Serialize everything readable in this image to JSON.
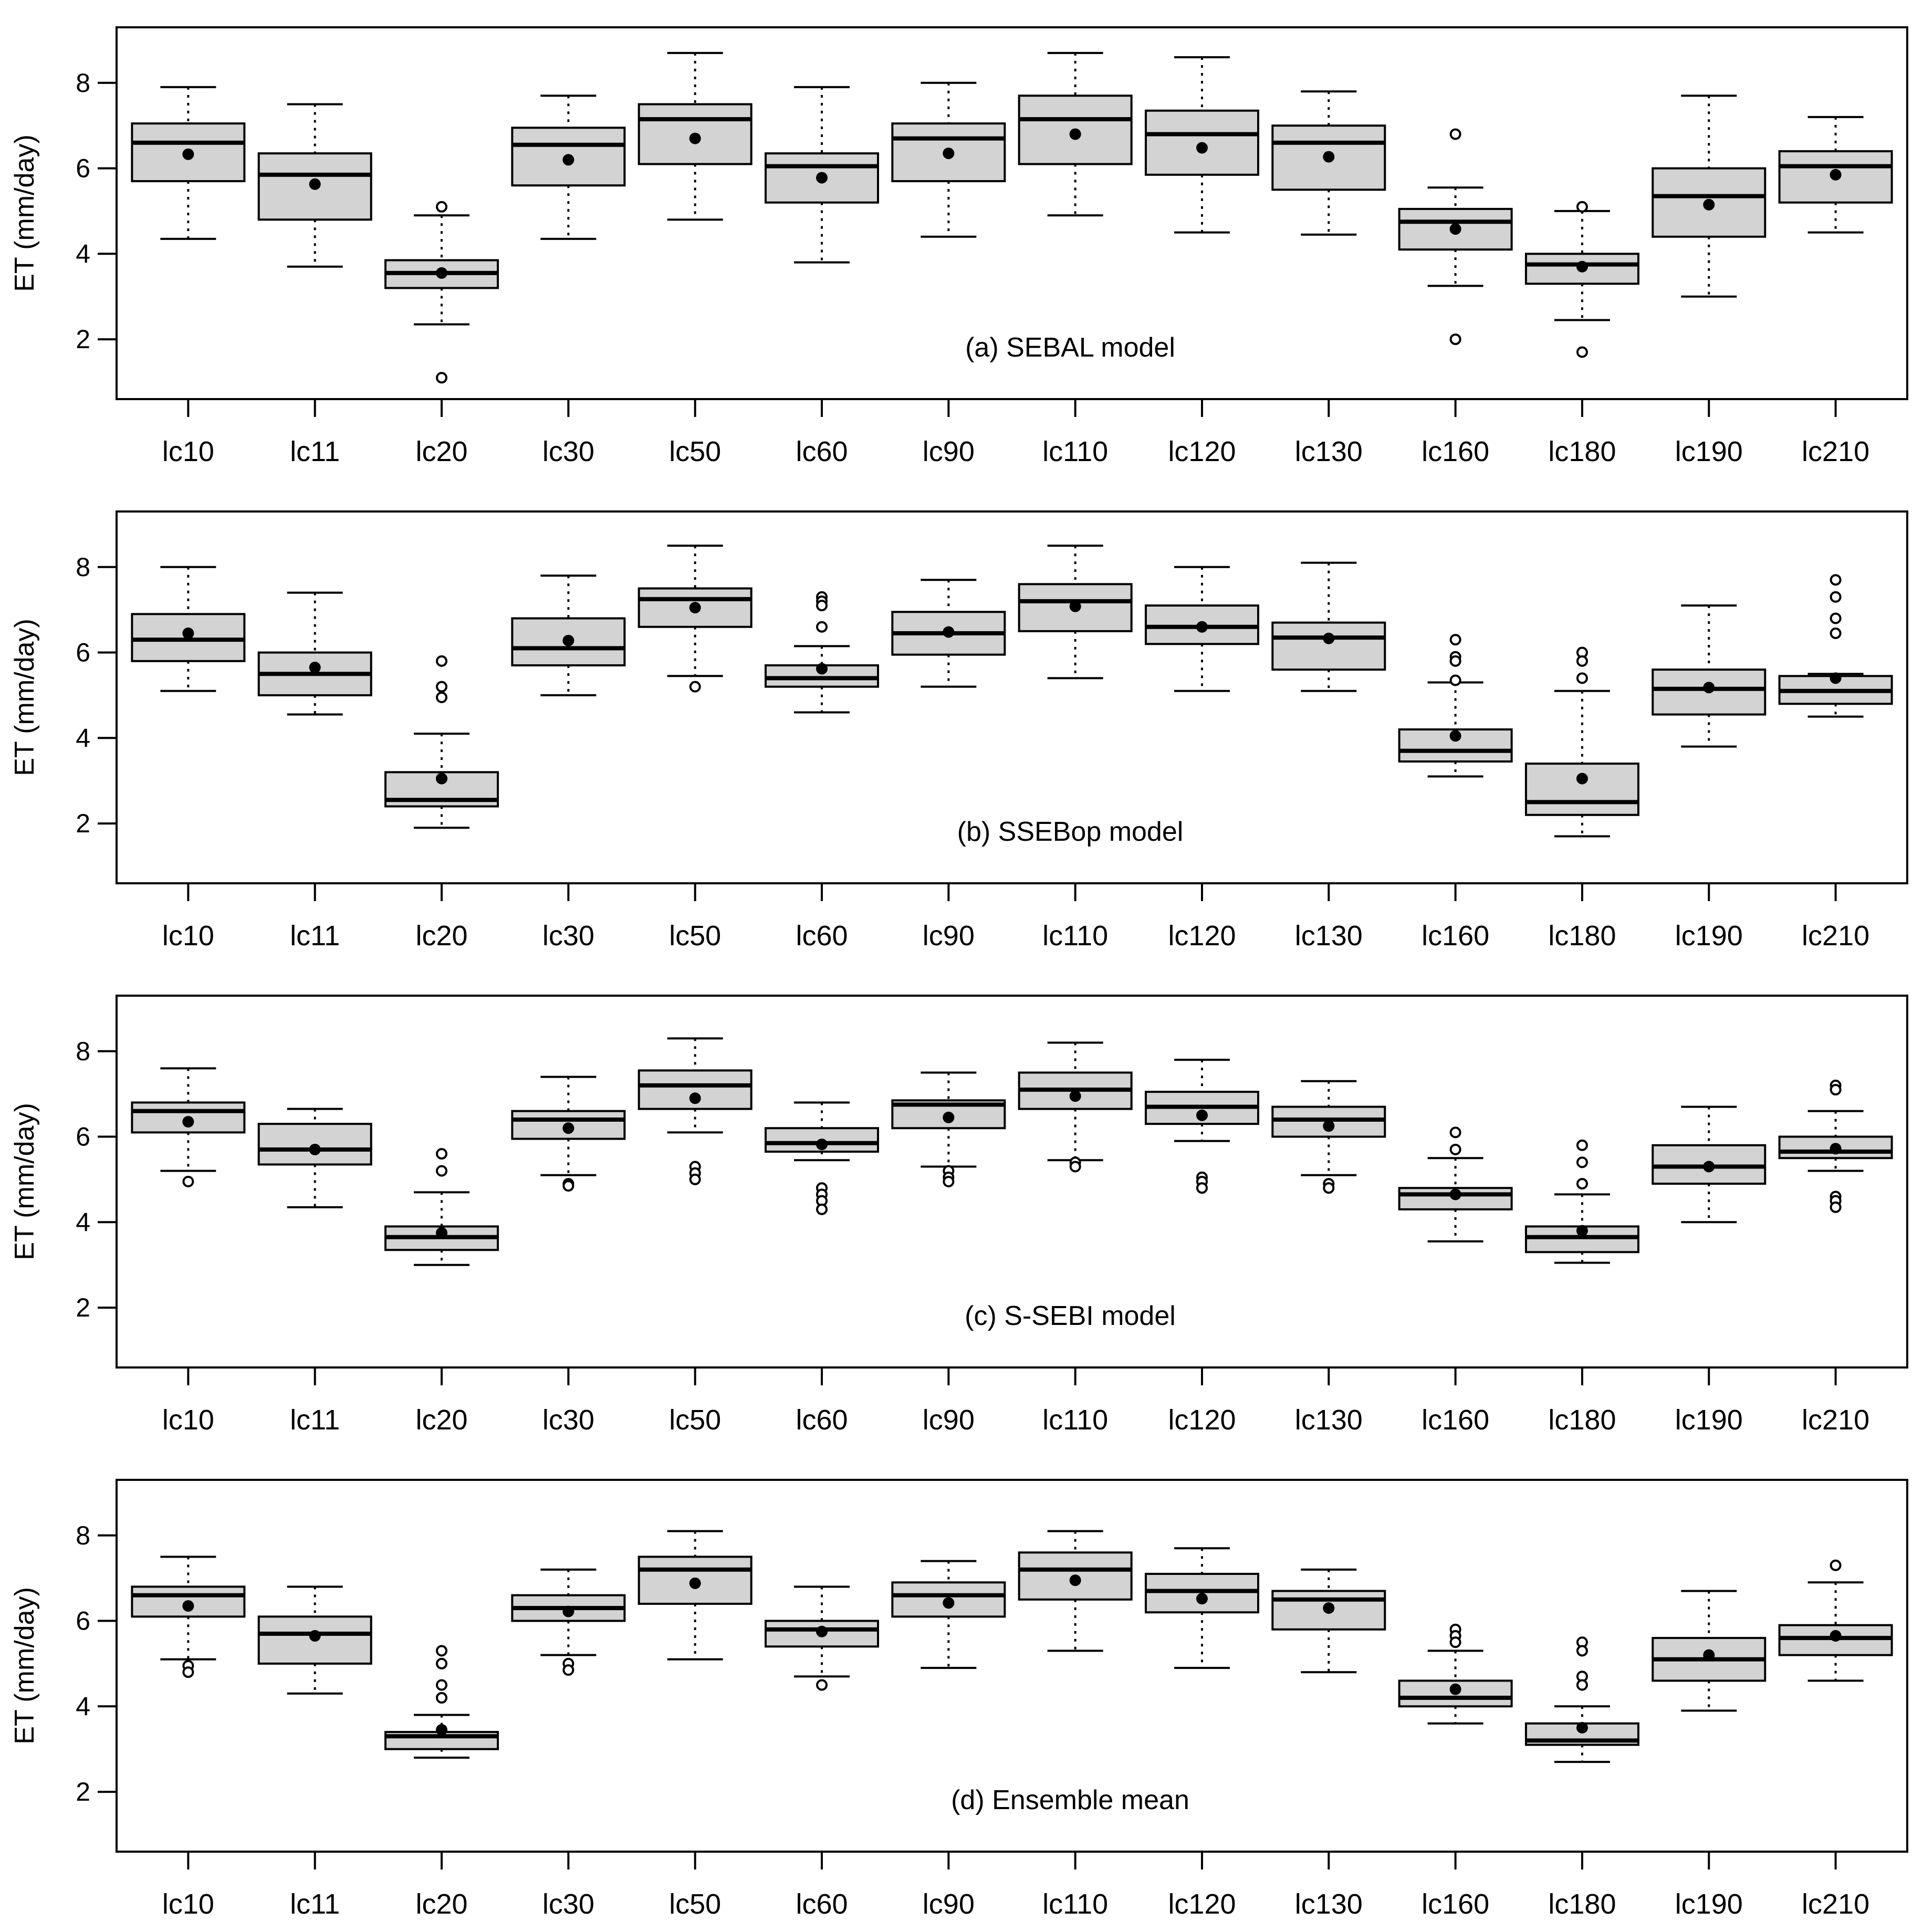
{
  "chart_data": [
    {
      "type": "box",
      "title": "(a) SEBAL model",
      "ylabel": "ET (mm/day)",
      "ylim": [
        0.6,
        9.3
      ],
      "yticks": [
        2,
        4,
        6,
        8
      ],
      "categories": [
        "lc10",
        "lc11",
        "lc20",
        "lc30",
        "lc50",
        "lc60",
        "lc90",
        "lc110",
        "lc120",
        "lc130",
        "lc160",
        "lc180",
        "lc190",
        "lc210"
      ],
      "boxes": [
        {
          "min": 4.35,
          "q1": 5.7,
          "median": 6.6,
          "q3": 7.05,
          "max": 7.9,
          "mean": 6.33,
          "outliers": []
        },
        {
          "min": 3.7,
          "q1": 4.8,
          "median": 5.85,
          "q3": 6.35,
          "max": 7.5,
          "mean": 5.63,
          "outliers": []
        },
        {
          "min": 2.35,
          "q1": 3.2,
          "median": 3.55,
          "q3": 3.85,
          "max": 4.9,
          "mean": 3.55,
          "outliers": [
            5.1,
            1.1
          ]
        },
        {
          "min": 4.35,
          "q1": 5.6,
          "median": 6.55,
          "q3": 6.95,
          "max": 7.7,
          "mean": 6.2,
          "outliers": []
        },
        {
          "min": 4.8,
          "q1": 6.1,
          "median": 7.15,
          "q3": 7.5,
          "max": 8.7,
          "mean": 6.7,
          "outliers": []
        },
        {
          "min": 3.8,
          "q1": 5.2,
          "median": 6.05,
          "q3": 6.35,
          "max": 7.9,
          "mean": 5.78,
          "outliers": []
        },
        {
          "min": 4.4,
          "q1": 5.7,
          "median": 6.7,
          "q3": 7.05,
          "max": 8.0,
          "mean": 6.35,
          "outliers": []
        },
        {
          "min": 4.9,
          "q1": 6.1,
          "median": 7.15,
          "q3": 7.7,
          "max": 8.7,
          "mean": 6.8,
          "outliers": []
        },
        {
          "min": 4.5,
          "q1": 5.85,
          "median": 6.8,
          "q3": 7.35,
          "max": 8.6,
          "mean": 6.48,
          "outliers": []
        },
        {
          "min": 4.45,
          "q1": 5.5,
          "median": 6.6,
          "q3": 7.0,
          "max": 7.8,
          "mean": 6.27,
          "outliers": []
        },
        {
          "min": 3.25,
          "q1": 4.1,
          "median": 4.75,
          "q3": 5.05,
          "max": 5.55,
          "mean": 4.58,
          "outliers": [
            6.8,
            2.0
          ]
        },
        {
          "min": 2.45,
          "q1": 3.3,
          "median": 3.75,
          "q3": 4.0,
          "max": 5.0,
          "mean": 3.7,
          "outliers": [
            5.1,
            1.7
          ]
        },
        {
          "min": 3.0,
          "q1": 4.4,
          "median": 5.35,
          "q3": 6.0,
          "max": 7.7,
          "mean": 5.15,
          "outliers": []
        },
        {
          "min": 4.5,
          "q1": 5.2,
          "median": 6.05,
          "q3": 6.4,
          "max": 7.2,
          "mean": 5.85,
          "outliers": []
        }
      ]
    },
    {
      "type": "box",
      "title": "(b) SSEBop model",
      "ylabel": "ET (mm/day)",
      "ylim": [
        0.6,
        9.3
      ],
      "yticks": [
        2,
        4,
        6,
        8
      ],
      "categories": [
        "lc10",
        "lc11",
        "lc20",
        "lc30",
        "lc50",
        "lc60",
        "lc90",
        "lc110",
        "lc120",
        "lc130",
        "lc160",
        "lc180",
        "lc190",
        "lc210"
      ],
      "boxes": [
        {
          "min": 5.1,
          "q1": 5.8,
          "median": 6.3,
          "q3": 6.9,
          "max": 8.0,
          "mean": 6.45,
          "outliers": []
        },
        {
          "min": 4.55,
          "q1": 5.0,
          "median": 5.5,
          "q3": 6.0,
          "max": 7.4,
          "mean": 5.65,
          "outliers": []
        },
        {
          "min": 1.9,
          "q1": 2.4,
          "median": 2.55,
          "q3": 3.2,
          "max": 4.1,
          "mean": 3.05,
          "outliers": [
            5.8,
            5.2,
            4.95
          ]
        },
        {
          "min": 5.0,
          "q1": 5.7,
          "median": 6.1,
          "q3": 6.8,
          "max": 7.8,
          "mean": 6.28,
          "outliers": []
        },
        {
          "min": 5.45,
          "q1": 6.6,
          "median": 7.25,
          "q3": 7.5,
          "max": 8.5,
          "mean": 7.05,
          "outliers": [
            5.2
          ]
        },
        {
          "min": 4.6,
          "q1": 5.2,
          "median": 5.4,
          "q3": 5.7,
          "max": 6.15,
          "mean": 5.62,
          "outliers": [
            7.3,
            7.2,
            7.1,
            6.6
          ]
        },
        {
          "min": 5.2,
          "q1": 5.95,
          "median": 6.45,
          "q3": 6.95,
          "max": 7.7,
          "mean": 6.48,
          "outliers": []
        },
        {
          "min": 5.4,
          "q1": 6.5,
          "median": 7.2,
          "q3": 7.6,
          "max": 8.5,
          "mean": 7.08,
          "outliers": []
        },
        {
          "min": 5.1,
          "q1": 6.2,
          "median": 6.6,
          "q3": 7.1,
          "max": 8.0,
          "mean": 6.6,
          "outliers": []
        },
        {
          "min": 5.1,
          "q1": 5.6,
          "median": 6.35,
          "q3": 6.7,
          "max": 8.1,
          "mean": 6.33,
          "outliers": []
        },
        {
          "min": 3.1,
          "q1": 3.45,
          "median": 3.7,
          "q3": 4.2,
          "max": 5.3,
          "mean": 4.05,
          "outliers": [
            6.3,
            5.9,
            5.8,
            5.35
          ]
        },
        {
          "min": 1.7,
          "q1": 2.2,
          "median": 2.5,
          "q3": 3.4,
          "max": 5.1,
          "mean": 3.05,
          "outliers": [
            6.0,
            5.8,
            5.4
          ]
        },
        {
          "min": 3.8,
          "q1": 4.55,
          "median": 5.15,
          "q3": 5.6,
          "max": 7.1,
          "mean": 5.18,
          "outliers": []
        },
        {
          "min": 4.5,
          "q1": 4.8,
          "median": 5.1,
          "q3": 5.45,
          "max": 5.5,
          "mean": 5.4,
          "outliers": [
            7.7,
            7.3,
            6.8,
            6.45
          ]
        }
      ]
    },
    {
      "type": "box",
      "title": "(c) S-SEBI model",
      "ylabel": "ET (mm/day)",
      "ylim": [
        0.6,
        9.3
      ],
      "yticks": [
        2,
        4,
        6,
        8
      ],
      "categories": [
        "lc10",
        "lc11",
        "lc20",
        "lc30",
        "lc50",
        "lc60",
        "lc90",
        "lc110",
        "lc120",
        "lc130",
        "lc160",
        "lc180",
        "lc190",
        "lc210"
      ],
      "boxes": [
        {
          "min": 5.2,
          "q1": 6.1,
          "median": 6.6,
          "q3": 6.8,
          "max": 7.6,
          "mean": 6.35,
          "outliers": [
            4.95
          ]
        },
        {
          "min": 4.35,
          "q1": 5.35,
          "median": 5.7,
          "q3": 6.3,
          "max": 6.65,
          "mean": 5.7,
          "outliers": []
        },
        {
          "min": 3.0,
          "q1": 3.35,
          "median": 3.65,
          "q3": 3.9,
          "max": 4.7,
          "mean": 3.75,
          "outliers": [
            5.6,
            5.2
          ]
        },
        {
          "min": 5.1,
          "q1": 5.95,
          "median": 6.4,
          "q3": 6.6,
          "max": 7.4,
          "mean": 6.2,
          "outliers": [
            4.9,
            4.85
          ]
        },
        {
          "min": 6.1,
          "q1": 6.65,
          "median": 7.2,
          "q3": 7.55,
          "max": 8.3,
          "mean": 6.9,
          "outliers": [
            5.3,
            5.15,
            5.0
          ]
        },
        {
          "min": 5.45,
          "q1": 5.65,
          "median": 5.85,
          "q3": 6.2,
          "max": 6.8,
          "mean": 5.82,
          "outliers": [
            4.8,
            4.65,
            4.5,
            4.3
          ]
        },
        {
          "min": 5.3,
          "q1": 6.2,
          "median": 6.75,
          "q3": 6.85,
          "max": 7.5,
          "mean": 6.45,
          "outliers": [
            5.2,
            5.05,
            4.95
          ]
        },
        {
          "min": 5.45,
          "q1": 6.65,
          "median": 7.1,
          "q3": 7.5,
          "max": 8.2,
          "mean": 6.95,
          "outliers": [
            5.4,
            5.3
          ]
        },
        {
          "min": 5.9,
          "q1": 6.3,
          "median": 6.7,
          "q3": 7.05,
          "max": 7.8,
          "mean": 6.5,
          "outliers": [
            5.05,
            4.95,
            4.8
          ]
        },
        {
          "min": 5.1,
          "q1": 6.0,
          "median": 6.4,
          "q3": 6.7,
          "max": 7.3,
          "mean": 6.25,
          "outliers": [
            4.9,
            4.8
          ]
        },
        {
          "min": 3.55,
          "q1": 4.3,
          "median": 4.65,
          "q3": 4.8,
          "max": 5.5,
          "mean": 4.65,
          "outliers": [
            6.1,
            5.7
          ]
        },
        {
          "min": 3.05,
          "q1": 3.3,
          "median": 3.65,
          "q3": 3.9,
          "max": 4.65,
          "mean": 3.8,
          "outliers": [
            5.8,
            5.4,
            4.9
          ]
        },
        {
          "min": 4.0,
          "q1": 4.9,
          "median": 5.3,
          "q3": 5.8,
          "max": 6.7,
          "mean": 5.3,
          "outliers": []
        },
        {
          "min": 5.2,
          "q1": 5.5,
          "median": 5.65,
          "q3": 6.0,
          "max": 6.6,
          "mean": 5.72,
          "outliers": [
            7.2,
            7.1,
            4.6,
            4.5,
            4.35
          ]
        }
      ]
    },
    {
      "type": "box",
      "title": "(d) Ensemble mean",
      "ylabel": "ET (mm/day)",
      "ylim": [
        0.6,
        9.3
      ],
      "yticks": [
        2,
        4,
        6,
        8
      ],
      "categories": [
        "lc10",
        "lc11",
        "lc20",
        "lc30",
        "lc50",
        "lc60",
        "lc90",
        "lc110",
        "lc120",
        "lc130",
        "lc160",
        "lc180",
        "lc190",
        "lc210"
      ],
      "boxes": [
        {
          "min": 5.1,
          "q1": 6.1,
          "median": 6.6,
          "q3": 6.8,
          "max": 7.5,
          "mean": 6.35,
          "outliers": [
            4.95,
            4.8
          ]
        },
        {
          "min": 4.3,
          "q1": 5.0,
          "median": 5.7,
          "q3": 6.1,
          "max": 6.8,
          "mean": 5.65,
          "outliers": []
        },
        {
          "min": 2.8,
          "q1": 3.0,
          "median": 3.3,
          "q3": 3.4,
          "max": 3.8,
          "mean": 3.45,
          "outliers": [
            5.3,
            5.0,
            4.5,
            4.2
          ]
        },
        {
          "min": 5.2,
          "q1": 6.0,
          "median": 6.3,
          "q3": 6.6,
          "max": 7.2,
          "mean": 6.22,
          "outliers": [
            5.0,
            4.85
          ]
        },
        {
          "min": 5.1,
          "q1": 6.4,
          "median": 7.2,
          "q3": 7.5,
          "max": 8.1,
          "mean": 6.88,
          "outliers": []
        },
        {
          "min": 4.7,
          "q1": 5.4,
          "median": 5.8,
          "q3": 6.0,
          "max": 6.8,
          "mean": 5.75,
          "outliers": [
            4.5
          ]
        },
        {
          "min": 4.9,
          "q1": 6.1,
          "median": 6.6,
          "q3": 6.9,
          "max": 7.4,
          "mean": 6.42,
          "outliers": []
        },
        {
          "min": 5.3,
          "q1": 6.5,
          "median": 7.2,
          "q3": 7.6,
          "max": 8.1,
          "mean": 6.95,
          "outliers": []
        },
        {
          "min": 4.9,
          "q1": 6.2,
          "median": 6.7,
          "q3": 7.1,
          "max": 7.7,
          "mean": 6.52,
          "outliers": []
        },
        {
          "min": 4.8,
          "q1": 5.8,
          "median": 6.5,
          "q3": 6.7,
          "max": 7.2,
          "mean": 6.3,
          "outliers": []
        },
        {
          "min": 3.6,
          "q1": 4.0,
          "median": 4.2,
          "q3": 4.6,
          "max": 5.3,
          "mean": 4.4,
          "outliers": [
            5.8,
            5.65,
            5.5
          ]
        },
        {
          "min": 2.7,
          "q1": 3.1,
          "median": 3.2,
          "q3": 3.6,
          "max": 4.0,
          "mean": 3.5,
          "outliers": [
            5.5,
            5.3,
            4.7,
            4.5
          ]
        },
        {
          "min": 3.9,
          "q1": 4.6,
          "median": 5.1,
          "q3": 5.6,
          "max": 6.7,
          "mean": 5.2,
          "outliers": []
        },
        {
          "min": 4.6,
          "q1": 5.2,
          "median": 5.6,
          "q3": 5.9,
          "max": 6.9,
          "mean": 5.65,
          "outliers": [
            7.3
          ]
        }
      ]
    }
  ]
}
